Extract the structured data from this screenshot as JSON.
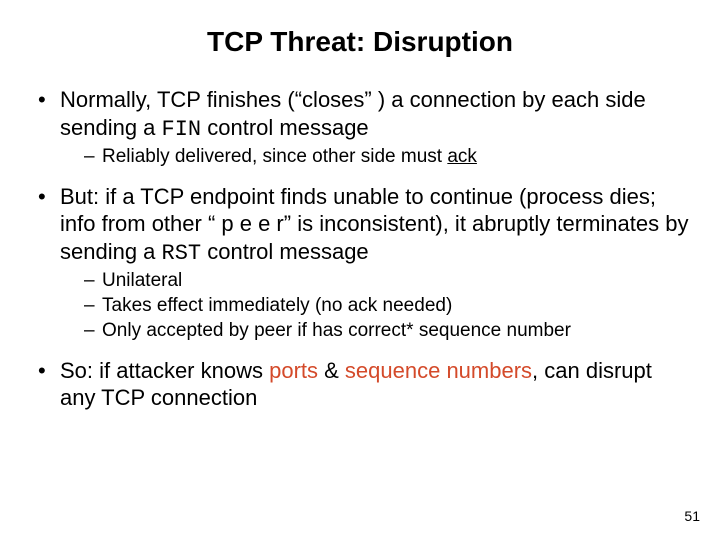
{
  "title": "TCP Threat: Disruption",
  "bullets": [
    {
      "pre": "Normally, TCP finishes (“closes” ) a connection by each side sending a ",
      "code": "FIN",
      "post": " control message",
      "sub": [
        {
          "pre": "Reliably delivered, since other side must ",
          "u": "ack",
          "post": ""
        }
      ]
    },
    {
      "pre": "But: if a TCP endpoint finds unable to continue (process dies; info from other “ p e e r” is inconsistent), it abruptly terminates by sending a ",
      "code": "RST",
      "post": " control message",
      "sub": [
        {
          "text": "Unilateral"
        },
        {
          "text": "Takes effect immediately (no ack needed)"
        },
        {
          "text": "Only accepted by peer if has correct* sequence number"
        }
      ]
    },
    {
      "pre": "So: if attacker knows ",
      "hl1": "ports",
      "mid": " & ",
      "hl2": "sequence numbers",
      "post": ", can disrupt any TCP connection"
    }
  ],
  "page": "51"
}
